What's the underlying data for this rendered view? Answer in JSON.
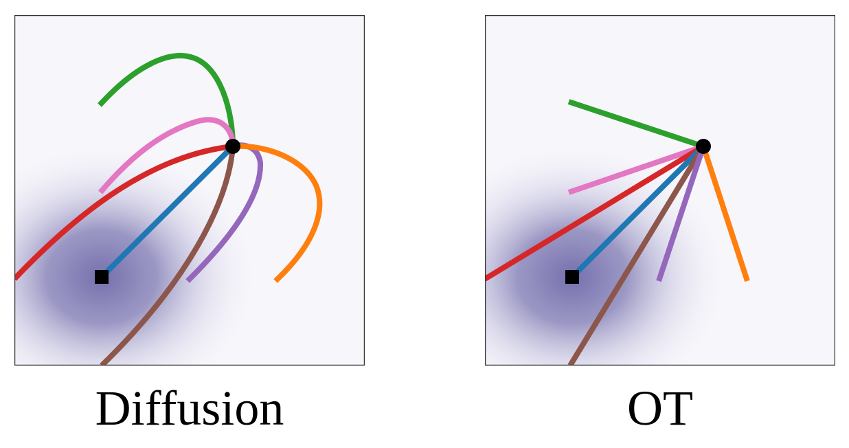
{
  "panels": [
    {
      "caption": "Diffusion",
      "path_style": "curved",
      "paths": [
        {
          "color": "#2ca02c",
          "name": "green"
        },
        {
          "color": "#e377c2",
          "name": "pink"
        },
        {
          "color": "#d62728",
          "name": "red"
        },
        {
          "color": "#1f77b4",
          "name": "blue"
        },
        {
          "color": "#8c564b",
          "name": "brown"
        },
        {
          "color": "#9467bd",
          "name": "purple"
        },
        {
          "color": "#ff7f0e",
          "name": "orange"
        }
      ],
      "markers": {
        "source": "square",
        "target": "circle"
      }
    },
    {
      "caption": "OT",
      "path_style": "straight",
      "paths": [
        {
          "color": "#2ca02c",
          "name": "green"
        },
        {
          "color": "#e377c2",
          "name": "pink"
        },
        {
          "color": "#d62728",
          "name": "red"
        },
        {
          "color": "#1f77b4",
          "name": "blue"
        },
        {
          "color": "#8c564b",
          "name": "brown"
        },
        {
          "color": "#9467bd",
          "name": "purple"
        },
        {
          "color": "#ff7f0e",
          "name": "orange"
        }
      ],
      "markers": {
        "source": "square",
        "target": "circle"
      }
    }
  ],
  "density_color": "#6e69a8"
}
